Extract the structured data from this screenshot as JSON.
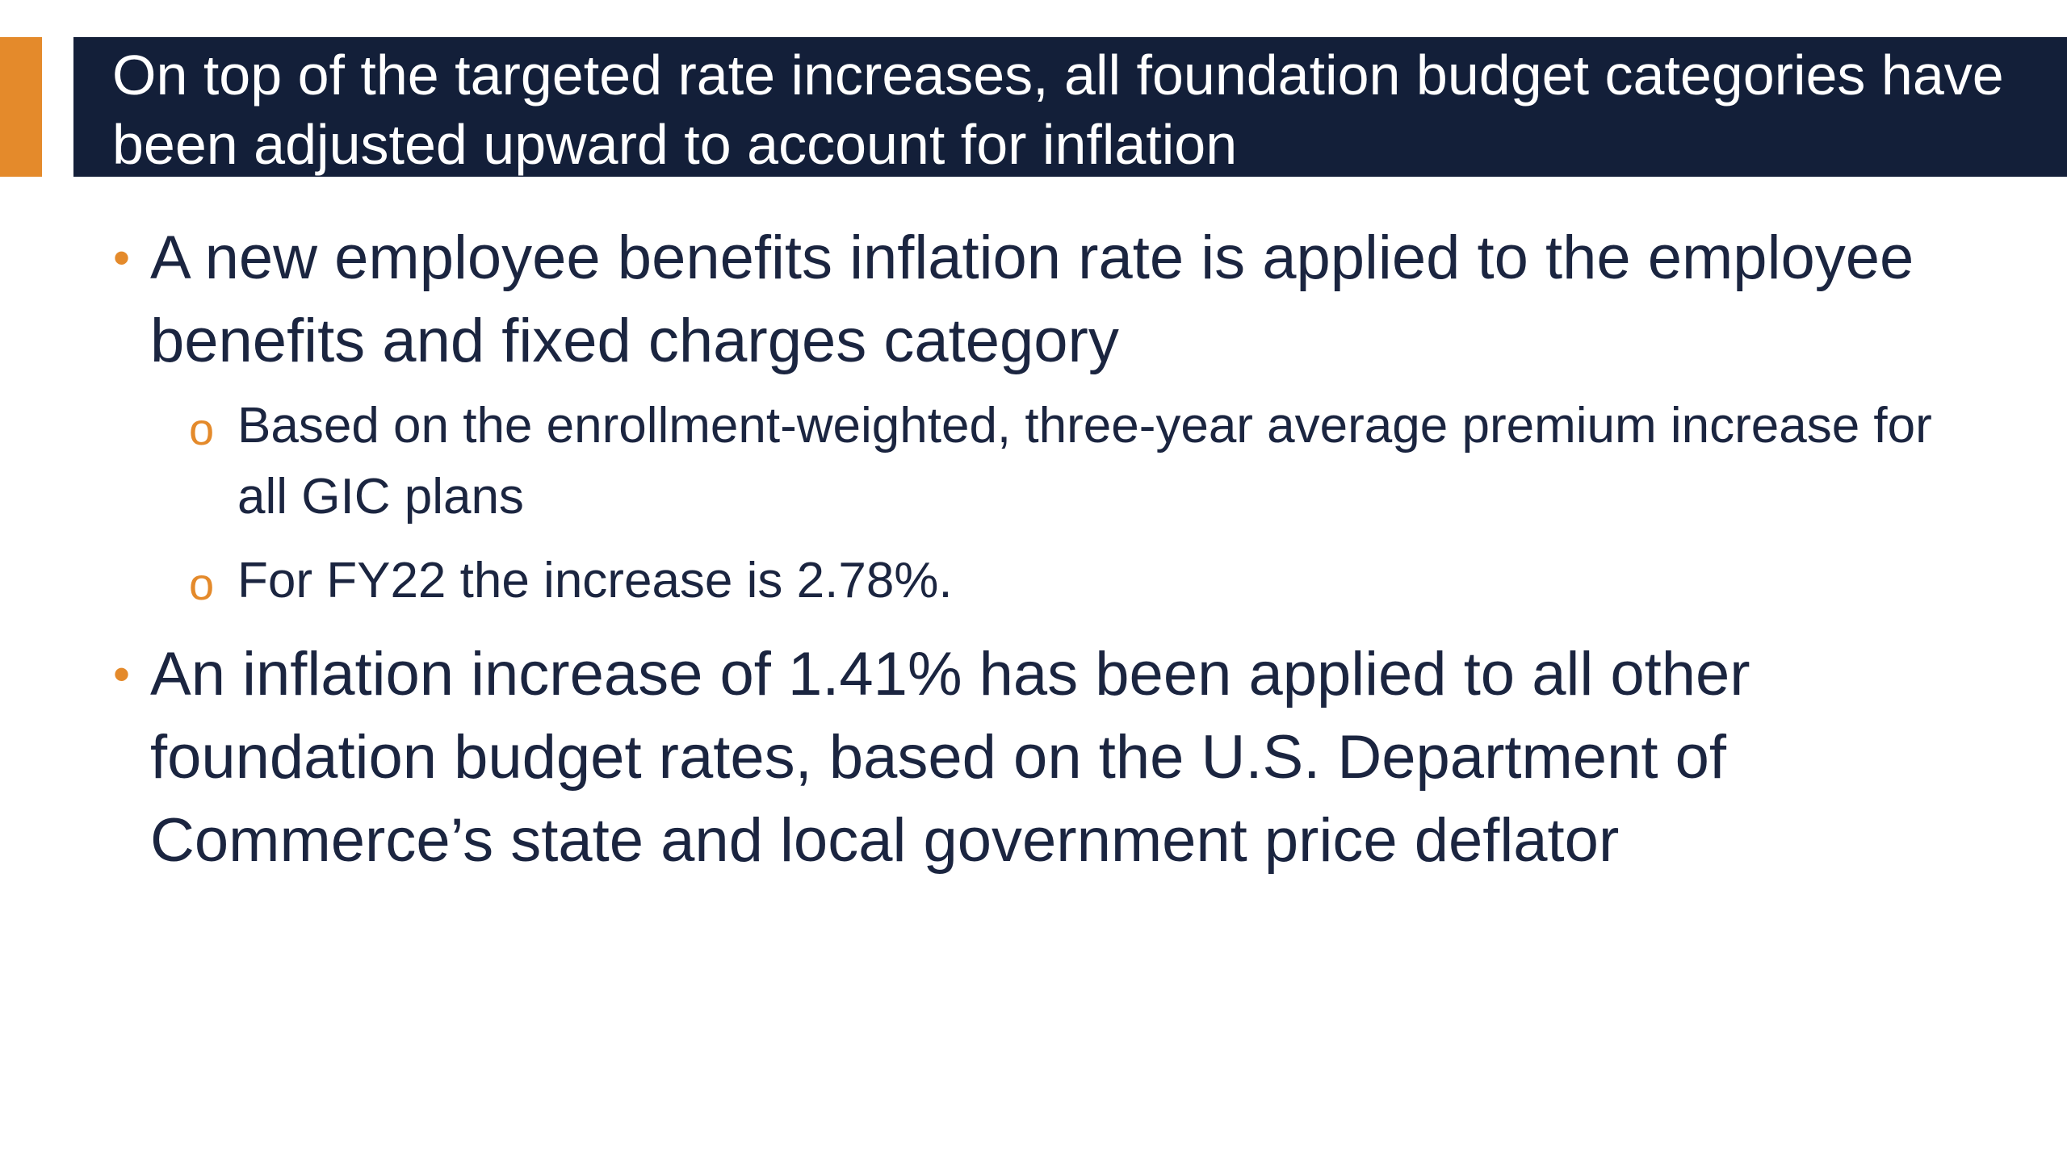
{
  "slide": {
    "title": "On top of the targeted rate increases, all foundation budget categories have been adjusted upward to account for inflation",
    "bullets": [
      {
        "text": "A new employee benefits inflation rate is applied to the employee benefits and fixed charges category",
        "sub_bullets": [
          "Based on the enrollment-weighted, three-year average premium increase for all GIC plans",
          "For FY22 the increase is 2.78%."
        ]
      },
      {
        "text": "An inflation increase of 1.41% has been applied to all other foundation budget rates, based on the U.S. Department of Commerce’s state and local government price deflator",
        "sub_bullets": []
      }
    ]
  }
}
